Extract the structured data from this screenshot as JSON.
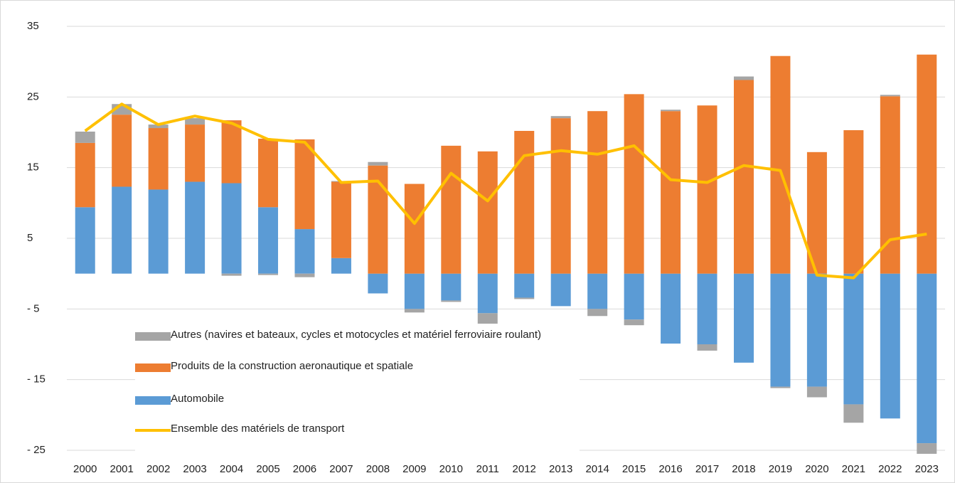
{
  "chart_data": {
    "type": "bar",
    "categories": [
      "2000",
      "2001",
      "2002",
      "2003",
      "2004",
      "2005",
      "2006",
      "2007",
      "2008",
      "2009",
      "2010",
      "2011",
      "2012",
      "2013",
      "2014",
      "2015",
      "2016",
      "2017",
      "2018",
      "2019",
      "2020",
      "2021",
      "2022",
      "2023"
    ],
    "series": [
      {
        "name": "Automobile",
        "color": "#5b9bd5",
        "type": "bar",
        "values": [
          9.4,
          12.3,
          11.9,
          13.0,
          12.8,
          9.4,
          6.3,
          2.2,
          -2.8,
          -5.0,
          -3.8,
          -5.6,
          -3.4,
          -4.6,
          -5.0,
          -6.5,
          -9.9,
          -10.0,
          -12.6,
          -16.0,
          -16.0,
          -18.5,
          -20.5,
          -24.0
        ]
      },
      {
        "name": "Produits de la construction aeronautique et spatiale",
        "color": "#ed7d31",
        "type": "bar",
        "values": [
          9.1,
          10.2,
          8.7,
          8.1,
          8.9,
          9.7,
          12.7,
          10.8,
          15.3,
          12.7,
          18.1,
          17.3,
          20.2,
          22.0,
          23.0,
          25.4,
          23.0,
          23.8,
          27.4,
          30.8,
          17.2,
          20.3,
          25.1,
          31.0
        ]
      },
      {
        "name": "Autres (navires et bateaux, cycles et motocycles et matériel ferroviaire roulant)",
        "color": "#a5a5a5",
        "type": "bar",
        "values": [
          1.6,
          1.5,
          0.5,
          0.9,
          -0.3,
          -0.2,
          -0.5,
          0.1,
          0.5,
          -0.5,
          -0.2,
          -1.6,
          -0.2,
          0.3,
          -1.0,
          -0.8,
          0.2,
          -0.9,
          0.5,
          -0.2,
          -1.5,
          -2.6,
          0.2,
          -1.5
        ]
      },
      {
        "name": "Ensemble des matériels de transport",
        "color": "#ffc000",
        "type": "line",
        "values": [
          20.2,
          24.0,
          21.1,
          22.3,
          21.3,
          19.0,
          18.6,
          12.9,
          13.1,
          7.1,
          14.2,
          10.3,
          16.7,
          17.4,
          16.9,
          18.1,
          13.3,
          12.9,
          15.3,
          14.6,
          -0.2,
          -0.6,
          4.8,
          5.6
        ]
      }
    ],
    "ylim": [
      -25,
      35
    ],
    "yticks": [
      35,
      25,
      15,
      5,
      {
        "value": -5,
        "label": "- 5"
      },
      {
        "value": -15,
        "label": "- 15"
      },
      {
        "value": -25,
        "label": "- 25"
      }
    ],
    "grid": true,
    "legend": "lower-left"
  }
}
